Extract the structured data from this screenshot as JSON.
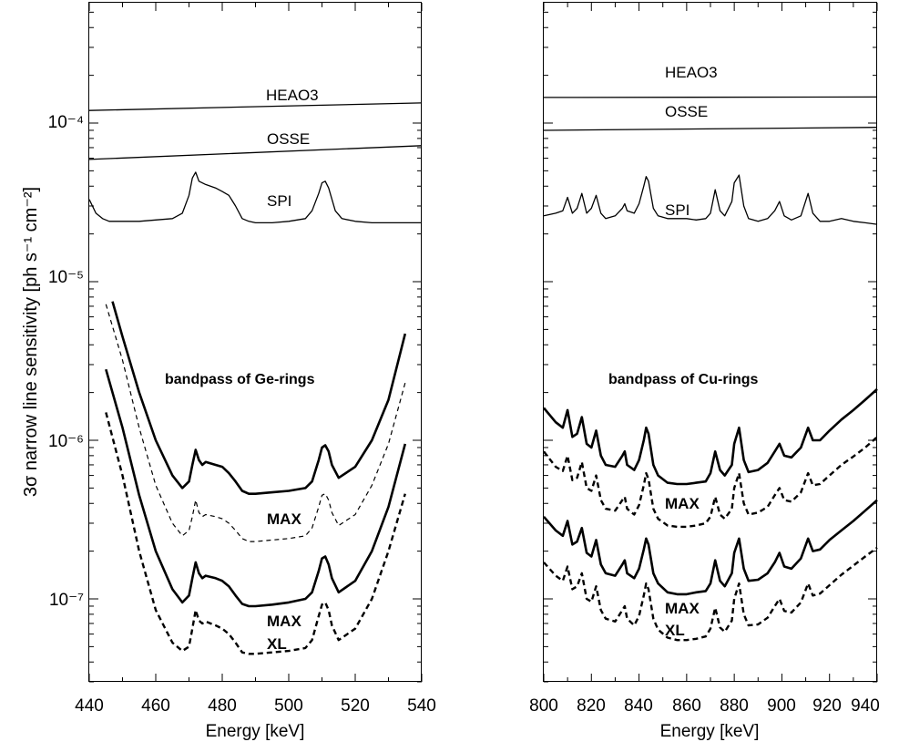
{
  "y_axis": {
    "label": "3σ  narrow line sensitivity  [ph s⁻¹ cm⁻²]",
    "ticks": [
      "10⁻⁷",
      "10⁻⁶",
      "10⁻⁵",
      "10⁻⁴"
    ]
  },
  "chart_data": [
    {
      "type": "line",
      "xlabel": "Energy [keV]",
      "ylabel": "3σ  narrow line sensitivity  [ph s⁻¹ cm⁻²]",
      "xlim": [
        440,
        540
      ],
      "ylim": [
        3e-08,
        0.0006
      ],
      "log_y": true,
      "xticks": [
        "440",
        "460",
        "480",
        "500",
        "520",
        "540"
      ],
      "bandpass_label": "bandpass of Ge-rings",
      "series": [
        {
          "name": "HEAO3",
          "style": "thin",
          "x": [
            440,
            540
          ],
          "y": [
            0.00012,
            0.000134
          ]
        },
        {
          "name": "OSSE",
          "style": "thin",
          "x": [
            440,
            540
          ],
          "y": [
            5.9e-05,
            7.2e-05
          ]
        },
        {
          "name": "SPI",
          "style": "thin",
          "x": [
            440,
            442,
            444,
            446,
            448,
            450,
            455,
            460,
            465,
            468,
            470,
            471,
            472,
            473,
            475,
            478,
            480,
            482,
            484,
            486,
            488,
            490,
            495,
            500,
            505,
            507,
            509,
            510,
            511,
            512,
            514,
            516,
            520,
            525,
            530,
            535,
            540
          ],
          "y": [
            3.3e-05,
            2.7e-05,
            2.5e-05,
            2.4e-05,
            2.4e-05,
            2.4e-05,
            2.4e-05,
            2.45e-05,
            2.5e-05,
            2.7e-05,
            3.5e-05,
            4.5e-05,
            4.9e-05,
            4.3e-05,
            4.1e-05,
            3.9e-05,
            3.7e-05,
            3.5e-05,
            3e-05,
            2.5e-05,
            2.4e-05,
            2.35e-05,
            2.35e-05,
            2.4e-05,
            2.5e-05,
            2.8e-05,
            3.6e-05,
            4.2e-05,
            4.3e-05,
            3.9e-05,
            2.8e-05,
            2.5e-05,
            2.4e-05,
            2.35e-05,
            2.35e-05,
            2.35e-05,
            2.35e-05
          ]
        },
        {
          "name": "",
          "style": "thick",
          "x": [
            447,
            450,
            455,
            460,
            465,
            468,
            470,
            471,
            472,
            473,
            474,
            475,
            478,
            480,
            482,
            484,
            486,
            488,
            490,
            495,
            500,
            505,
            507,
            509,
            510,
            511,
            512,
            513,
            515,
            520,
            525,
            530,
            535
          ],
          "y": [
            7.5e-06,
            4.5e-06,
            2e-06,
            1e-06,
            6e-07,
            5e-07,
            5.5e-07,
            7e-07,
            8.7e-07,
            7.5e-07,
            7e-07,
            7.3e-07,
            7e-07,
            6.8e-07,
            6.2e-07,
            5.5e-07,
            4.8e-07,
            4.6e-07,
            4.6e-07,
            4.7e-07,
            4.8e-07,
            5e-07,
            5.5e-07,
            7.5e-07,
            9e-07,
            9.3e-07,
            8.5e-07,
            7e-07,
            5.8e-07,
            6.8e-07,
            1e-06,
            1.8e-06,
            4.7e-06
          ]
        },
        {
          "name": "",
          "style": "dash-thin",
          "x": [
            445,
            450,
            455,
            460,
            465,
            468,
            470,
            471,
            472,
            473,
            474,
            475,
            478,
            480,
            482,
            484,
            486,
            488,
            490,
            495,
            500,
            505,
            507,
            509,
            510,
            511,
            512,
            513,
            515,
            520,
            525,
            530,
            535
          ],
          "y": [
            7.2e-06,
            3.2e-06,
            1.2e-06,
            5.2e-07,
            3e-07,
            2.5e-07,
            2.7e-07,
            3.3e-07,
            4.2e-07,
            3.5e-07,
            3.3e-07,
            3.4e-07,
            3.3e-07,
            3.2e-07,
            3e-07,
            2.7e-07,
            2.4e-07,
            2.3e-07,
            2.3e-07,
            2.35e-07,
            2.4e-07,
            2.5e-07,
            2.8e-07,
            3.8e-07,
            4.5e-07,
            4.6e-07,
            4.2e-07,
            3.5e-07,
            2.9e-07,
            3.4e-07,
            5.2e-07,
            9.5e-07,
            2.3e-06
          ]
        },
        {
          "name": "",
          "style": "thick",
          "x": [
            445,
            450,
            455,
            460,
            465,
            468,
            470,
            471,
            472,
            473,
            474,
            475,
            478,
            480,
            482,
            484,
            486,
            488,
            490,
            495,
            500,
            505,
            507,
            509,
            510,
            511,
            512,
            513,
            515,
            520,
            525,
            530,
            535
          ],
          "y": [
            2.8e-06,
            1.2e-06,
            4.5e-07,
            2e-07,
            1.15e-07,
            9.5e-08,
            1.05e-07,
            1.35e-07,
            1.7e-07,
            1.45e-07,
            1.35e-07,
            1.4e-07,
            1.35e-07,
            1.3e-07,
            1.2e-07,
            1.05e-07,
            9.3e-08,
            9e-08,
            9e-08,
            9.2e-08,
            9.5e-08,
            1e-07,
            1.1e-07,
            1.5e-07,
            1.8e-07,
            1.85e-07,
            1.65e-07,
            1.35e-07,
            1.1e-07,
            1.3e-07,
            2e-07,
            3.8e-07,
            9.5e-07
          ]
        },
        {
          "name": "",
          "style": "dash-thick",
          "x": [
            445,
            450,
            455,
            460,
            465,
            468,
            470,
            471,
            472,
            473,
            474,
            475,
            478,
            480,
            482,
            484,
            486,
            488,
            490,
            495,
            500,
            505,
            507,
            509,
            510,
            511,
            512,
            513,
            515,
            520,
            525,
            530,
            535
          ],
          "y": [
            1.5e-06,
            6e-07,
            2e-07,
            8.5e-08,
            5.3e-08,
            4.7e-08,
            5e-08,
            6.5e-08,
            8.5e-08,
            7.3e-08,
            7e-08,
            7.2e-08,
            6.8e-08,
            6.5e-08,
            6e-08,
            5.3e-08,
            4.6e-08,
            4.5e-08,
            4.5e-08,
            4.6e-08,
            4.7e-08,
            4.9e-08,
            5.5e-08,
            7.8e-08,
            9.2e-08,
            9.5e-08,
            8.5e-08,
            6.8e-08,
            5.5e-08,
            6.5e-08,
            1e-07,
            2e-07,
            4.6e-07
          ]
        }
      ],
      "annotations": [
        "HEAO3",
        "OSSE",
        "SPI",
        "MAX",
        "MAX",
        "XL"
      ]
    },
    {
      "type": "line",
      "xlabel": "Energy [keV]",
      "xlim": [
        800,
        940
      ],
      "ylim": [
        3e-08,
        0.0006
      ],
      "log_y": true,
      "xticks": [
        "800",
        "820",
        "840",
        "860",
        "880",
        "900",
        "920",
        "940"
      ],
      "bandpass_label": "bandpass of Cu-rings",
      "series": [
        {
          "name": "HEAO3",
          "style": "thin",
          "x": [
            800,
            940
          ],
          "y": [
            0.000145,
            0.000146
          ]
        },
        {
          "name": "OSSE",
          "style": "thin",
          "x": [
            800,
            940
          ],
          "y": [
            9e-05,
            9.4e-05
          ]
        },
        {
          "name": "SPI",
          "style": "thin",
          "x": [
            800,
            805,
            808,
            810,
            812,
            814,
            816,
            818,
            820,
            822,
            824,
            826,
            830,
            833,
            834,
            835,
            838,
            840,
            842,
            843,
            844,
            846,
            848,
            852,
            856,
            860,
            864,
            868,
            870,
            872,
            874,
            876,
            879,
            880,
            882,
            884,
            886,
            890,
            894,
            897,
            899,
            901,
            904,
            908,
            911,
            913,
            916,
            920,
            925,
            930,
            935,
            940
          ],
          "y": [
            2.6e-05,
            2.7e-05,
            2.8e-05,
            3.4e-05,
            2.7e-05,
            2.9e-05,
            3.6e-05,
            2.7e-05,
            2.9e-05,
            3.5e-05,
            2.7e-05,
            2.5e-05,
            2.6e-05,
            2.9e-05,
            3.1e-05,
            2.8e-05,
            2.7e-05,
            3.1e-05,
            4e-05,
            4.6e-05,
            4.3e-05,
            2.9e-05,
            2.6e-05,
            2.5e-05,
            2.5e-05,
            2.5e-05,
            2.45e-05,
            2.5e-05,
            2.7e-05,
            3.8e-05,
            2.8e-05,
            2.6e-05,
            3.2e-05,
            4.2e-05,
            4.7e-05,
            3e-05,
            2.5e-05,
            2.4e-05,
            2.5e-05,
            2.8e-05,
            3.2e-05,
            2.6e-05,
            2.45e-05,
            2.6e-05,
            3.6e-05,
            2.7e-05,
            2.4e-05,
            2.4e-05,
            2.5e-05,
            2.4e-05,
            2.35e-05,
            2.3e-05
          ]
        },
        {
          "name": "",
          "style": "thick",
          "x": [
            800,
            805,
            808,
            810,
            812,
            814,
            816,
            818,
            820,
            822,
            824,
            826,
            830,
            833,
            834,
            835,
            838,
            840,
            842,
            843,
            844,
            846,
            848,
            852,
            856,
            860,
            864,
            868,
            870,
            872,
            874,
            876,
            879,
            880,
            882,
            884,
            886,
            890,
            894,
            897,
            899,
            901,
            904,
            908,
            911,
            913,
            916,
            920,
            925,
            930,
            935,
            940
          ],
          "y": [
            1.6e-06,
            1.3e-06,
            1.2e-06,
            1.55e-06,
            1.05e-06,
            1.1e-06,
            1.4e-06,
            9.5e-07,
            9e-07,
            1.15e-06,
            8e-07,
            7e-07,
            6.8e-07,
            8e-07,
            8.5e-07,
            7e-07,
            6.5e-07,
            7.5e-07,
            1e-06,
            1.2e-06,
            1.1e-06,
            7e-07,
            6e-07,
            5.4e-07,
            5.3e-07,
            5.3e-07,
            5.4e-07,
            5.5e-07,
            6.2e-07,
            8.5e-07,
            6.5e-07,
            6e-07,
            7e-07,
            9.5e-07,
            1.2e-06,
            7.5e-07,
            6.3e-07,
            6.5e-07,
            7.2e-07,
            8.5e-07,
            9.5e-07,
            8e-07,
            7.8e-07,
            9e-07,
            1.2e-06,
            1e-06,
            1e-06,
            1.15e-06,
            1.35e-06,
            1.55e-06,
            1.8e-06,
            2.1e-06
          ]
        },
        {
          "name": "",
          "style": "dash-thick",
          "x": [
            800,
            805,
            808,
            810,
            812,
            814,
            816,
            818,
            820,
            822,
            824,
            826,
            830,
            833,
            834,
            835,
            838,
            840,
            842,
            843,
            844,
            846,
            848,
            852,
            856,
            860,
            864,
            868,
            870,
            872,
            874,
            876,
            879,
            880,
            882,
            884,
            886,
            890,
            894,
            897,
            899,
            901,
            904,
            908,
            911,
            913,
            916,
            920,
            925,
            930,
            935,
            940
          ],
          "y": [
            8.5e-07,
            6.8e-07,
            6.4e-07,
            8e-07,
            5.6e-07,
            5.8e-07,
            7.3e-07,
            5e-07,
            4.8e-07,
            6e-07,
            4.2e-07,
            3.7e-07,
            3.6e-07,
            4.2e-07,
            4.4e-07,
            3.7e-07,
            3.4e-07,
            3.9e-07,
            5.2e-07,
            6.2e-07,
            5.7e-07,
            3.7e-07,
            3.2e-07,
            2.9e-07,
            2.85e-07,
            2.85e-07,
            2.9e-07,
            3e-07,
            3.3e-07,
            4.4e-07,
            3.4e-07,
            3.2e-07,
            3.7e-07,
            5e-07,
            6.2e-07,
            4e-07,
            3.4e-07,
            3.5e-07,
            3.8e-07,
            4.5e-07,
            5e-07,
            4.2e-07,
            4.1e-07,
            4.7e-07,
            6.2e-07,
            5.2e-07,
            5.3e-07,
            6e-07,
            7e-07,
            7.9e-07,
            9e-07,
            1.05e-06
          ]
        },
        {
          "name": "",
          "style": "thick",
          "x": [
            800,
            805,
            808,
            810,
            812,
            814,
            816,
            818,
            820,
            822,
            824,
            826,
            830,
            833,
            834,
            835,
            838,
            840,
            842,
            843,
            844,
            846,
            848,
            852,
            856,
            860,
            864,
            868,
            870,
            872,
            874,
            876,
            879,
            880,
            882,
            884,
            886,
            890,
            894,
            897,
            899,
            901,
            904,
            908,
            911,
            913,
            916,
            920,
            925,
            930,
            935,
            940
          ],
          "y": [
            3.3e-07,
            2.7e-07,
            2.5e-07,
            3.1e-07,
            2.2e-07,
            2.3e-07,
            2.8e-07,
            1.95e-07,
            1.85e-07,
            2.35e-07,
            1.65e-07,
            1.45e-07,
            1.4e-07,
            1.65e-07,
            1.75e-07,
            1.45e-07,
            1.35e-07,
            1.55e-07,
            2.05e-07,
            2.4e-07,
            2.2e-07,
            1.45e-07,
            1.25e-07,
            1.1e-07,
            1.07e-07,
            1.07e-07,
            1.1e-07,
            1.12e-07,
            1.25e-07,
            1.75e-07,
            1.3e-07,
            1.2e-07,
            1.45e-07,
            1.95e-07,
            2.4e-07,
            1.55e-07,
            1.3e-07,
            1.32e-07,
            1.45e-07,
            1.7e-07,
            1.95e-07,
            1.6e-07,
            1.55e-07,
            1.8e-07,
            2.4e-07,
            2e-07,
            2.05e-07,
            2.35e-07,
            2.7e-07,
            3.1e-07,
            3.6e-07,
            4.2e-07
          ]
        },
        {
          "name": "",
          "style": "dash-thick",
          "x": [
            800,
            805,
            808,
            810,
            812,
            814,
            816,
            818,
            820,
            822,
            824,
            826,
            830,
            833,
            834,
            835,
            838,
            840,
            842,
            843,
            844,
            846,
            848,
            852,
            856,
            860,
            864,
            868,
            870,
            872,
            874,
            876,
            879,
            880,
            882,
            884,
            886,
            890,
            894,
            897,
            899,
            901,
            904,
            908,
            911,
            913,
            916,
            920,
            925,
            930,
            935,
            940
          ],
          "y": [
            1.7e-07,
            1.4e-07,
            1.3e-07,
            1.6e-07,
            1.15e-07,
            1.2e-07,
            1.45e-07,
            1e-07,
            9.6e-08,
            1.2e-07,
            8.5e-08,
            7.5e-08,
            7.2e-08,
            8.5e-08,
            9e-08,
            7.5e-08,
            6.8e-08,
            7.8e-08,
            1.05e-07,
            1.25e-07,
            1.15e-07,
            7.5e-08,
            6.4e-08,
            5.7e-08,
            5.5e-08,
            5.5e-08,
            5.6e-08,
            5.8e-08,
            6.5e-08,
            8.8e-08,
            6.6e-08,
            6.2e-08,
            7.3e-08,
            1e-07,
            1.25e-07,
            8e-08,
            6.8e-08,
            6.9e-08,
            7.6e-08,
            9e-08,
            1e-07,
            8.4e-08,
            8.2e-08,
            9.5e-08,
            1.25e-07,
            1.05e-07,
            1.08e-07,
            1.22e-07,
            1.42e-07,
            1.62e-07,
            1.85e-07,
            2.1e-07
          ]
        }
      ],
      "annotations": [
        "HEAO3",
        "OSSE",
        "SPI",
        "MAX",
        "MAX",
        "XL"
      ]
    }
  ]
}
